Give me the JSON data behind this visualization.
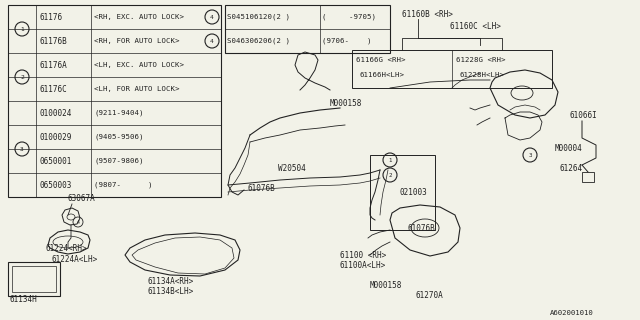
{
  "bg_color": "#f2f2e8",
  "line_color": "#222222",
  "footer": "A602001010",
  "table_rows": [
    [
      "61176",
      "<RH, EXC. AUTO LOCK>"
    ],
    [
      "61176B",
      "<RH, FOR AUTO LOCK>"
    ],
    [
      "61176A",
      "<LH, EXC. AUTO LOCK>"
    ],
    [
      "61176C",
      "<LH, FOR AUTO LOCK>"
    ],
    [
      "0100024",
      "(9211-9404)"
    ],
    [
      "0100029",
      "(9405-9506)"
    ],
    [
      "0650001",
      "(9507-9806)"
    ],
    [
      "0650003",
      "(9807-      )"
    ]
  ],
  "circle_rows": {
    "1": [
      0,
      1
    ],
    "2": [
      2,
      3
    ],
    "3": [
      4,
      5,
      6,
      7
    ]
  },
  "table4_parts": [
    "S045106120(2 )",
    "S046306206(2 )"
  ],
  "table4_dates": [
    "(     -9705)",
    "(9706-    )"
  ]
}
